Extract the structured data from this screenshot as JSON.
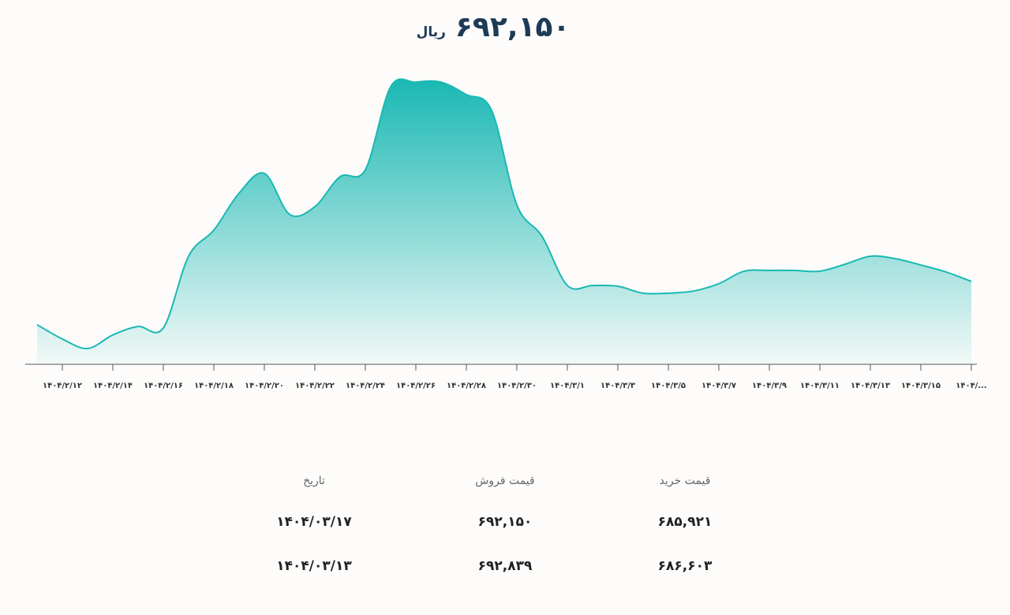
{
  "header": {
    "price": "۶۹۲,۱۵۰",
    "unit": "ریال"
  },
  "chart_data": {
    "type": "area",
    "categories": [
      null,
      "۱۴۰۴/۲/۱۲",
      null,
      "۱۴۰۴/۲/۱۴",
      null,
      "۱۴۰۴/۲/۱۶",
      null,
      "۱۴۰۴/۲/۱۸",
      null,
      "۱۴۰۴/۲/۲۰",
      null,
      "۱۴۰۴/۲/۲۲",
      null,
      "۱۴۰۴/۲/۲۴",
      null,
      "۱۴۰۴/۲/۲۶",
      null,
      "۱۴۰۴/۲/۲۸",
      null,
      "۱۴۰۴/۲/۳۰",
      null,
      "۱۴۰۴/۳/۱",
      null,
      "۱۴۰۴/۳/۳",
      null,
      "۱۴۰۴/۳/۵",
      null,
      "۱۴۰۴/۳/۷",
      null,
      "۱۴۰۴/۳/۹",
      null,
      "۱۴۰۴/۳/۱۱",
      null,
      "۱۴۰۴/۳/۱۳",
      null,
      "۱۴۰۴/۳/۱۵",
      null,
      "۱۴۰۴/..."
    ],
    "values": [
      690970,
      690580,
      690320,
      690690,
      690920,
      690880,
      692840,
      693550,
      694560,
      695100,
      693980,
      694190,
      695010,
      695200,
      697460,
      697590,
      697590,
      697250,
      696820,
      694240,
      693380,
      692040,
      692040,
      692020,
      691830,
      691830,
      691890,
      692090,
      692430,
      692450,
      692450,
      692430,
      692620,
      692839,
      692770,
      692600,
      692410,
      692150
    ],
    "color": "#1ab8b3",
    "ylim": [
      689890,
      697680
    ]
  },
  "table": {
    "headers": [
      "قیمت خرید",
      "قیمت فروش",
      "تاریخ"
    ],
    "rows": [
      [
        "۶۸۵,۹۲۱",
        "۶۹۲,۱۵۰",
        "۱۴۰۴/۰۳/۱۷"
      ],
      [
        "۶۸۶,۶۰۳",
        "۶۹۲,۸۳۹",
        "۱۴۰۴/۰۳/۱۳"
      ]
    ]
  }
}
